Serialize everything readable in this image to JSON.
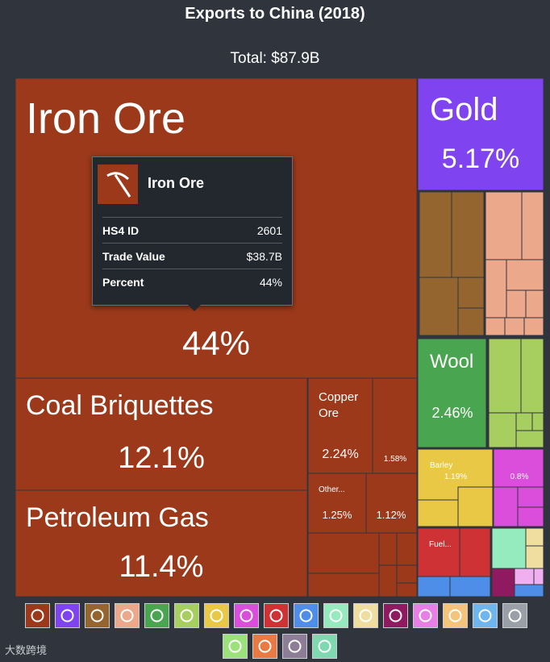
{
  "title": "Exports to China (2018)",
  "subtitle": "Total: $87.9B",
  "tooltip": {
    "name": "Iron Ore",
    "icon": "pickaxe-icon",
    "rows": [
      {
        "key": "HS4 ID",
        "value": "2601"
      },
      {
        "key": "Trade Value",
        "value": "$38.7B"
      },
      {
        "key": "Percent",
        "value": "44%"
      }
    ]
  },
  "brand": "大数跨境",
  "colors": {
    "minerals": "#9b391a",
    "precious": "#7f44f0",
    "animal": "#94652f",
    "animal_hides": "#eba88a",
    "textiles": "#4aa551",
    "vegetable": "#a6cf5f",
    "foodstuffs": "#e8c844",
    "chemicals": "#db4edb",
    "plastics": "#cf3234",
    "machines": "#4e8ee8",
    "misc": "#95ebbd",
    "paper": "#efde9f",
    "instruments": "#8f1a5f",
    "stone": "#f0b0ef"
  },
  "chart_data": {
    "type": "treemap",
    "title": "Exports to China (2018)",
    "total": "Total: $87.9B",
    "items": [
      {
        "label": "Iron Ore",
        "share": "44%",
        "value": 44.0
      },
      {
        "label": "Coal Briquettes",
        "share": "12.1%",
        "value": 12.1
      },
      {
        "label": "Petroleum Gas",
        "share": "11.4%",
        "value": 11.4
      },
      {
        "label": "Gold",
        "share": "5.17%",
        "value": 5.17
      },
      {
        "label": "Wool",
        "share": "2.46%",
        "value": 2.46
      },
      {
        "label": "Copper Ore",
        "share": "2.24%",
        "value": 2.24
      },
      {
        "label": "",
        "share": "1.58%",
        "value": 1.58
      },
      {
        "label": "Other...",
        "share": "1.25%",
        "value": 1.25
      },
      {
        "label": "",
        "share": "1.12%",
        "value": 1.12
      },
      {
        "label": "Barley",
        "share": "1.19%",
        "value": 1.19
      },
      {
        "label": "",
        "share": "0.8%",
        "value": 0.8
      },
      {
        "label": "Fuel...",
        "share": "",
        "value": null
      }
    ]
  },
  "legend": {
    "row1": [
      {
        "icon": "pickaxe-icon",
        "color": "#9b391a"
      },
      {
        "icon": "diamond-icon",
        "color": "#7f44f0"
      },
      {
        "icon": "anvil-icon",
        "color": "#94652f"
      },
      {
        "icon": "cow-icon",
        "color": "#eba88a"
      },
      {
        "icon": "shirt-icon",
        "color": "#4aa551"
      },
      {
        "icon": "wheat-icon",
        "color": "#a6cf5f"
      },
      {
        "icon": "orange-icon",
        "color": "#e8c844"
      },
      {
        "icon": "flask-icon",
        "color": "#db4edb"
      },
      {
        "icon": "tube-icon",
        "color": "#cf3234"
      },
      {
        "icon": "gear-icon",
        "color": "#4e8ee8"
      },
      {
        "icon": "hide-icon",
        "color": "#95ebbd"
      },
      {
        "icon": "paper-icon",
        "color": "#efde9f"
      },
      {
        "icon": "gauge-icon",
        "color": "#8f1a5f"
      },
      {
        "icon": "recycle-icon",
        "color": "#e97fe6"
      },
      {
        "icon": "bottle-icon",
        "color": "#f3c47a"
      },
      {
        "icon": "road-icon",
        "color": "#6fb6ef"
      },
      {
        "icon": "box-icon",
        "color": "#9aa0a8"
      }
    ],
    "row2": [
      {
        "icon": "shoe-icon",
        "color": "#9be27b"
      },
      {
        "icon": "stone-icon",
        "color": "#e97a44"
      },
      {
        "icon": "easel-icon",
        "color": "#8d7d96"
      },
      {
        "icon": "ammo-icon",
        "color": "#7fd9b0"
      }
    ]
  }
}
